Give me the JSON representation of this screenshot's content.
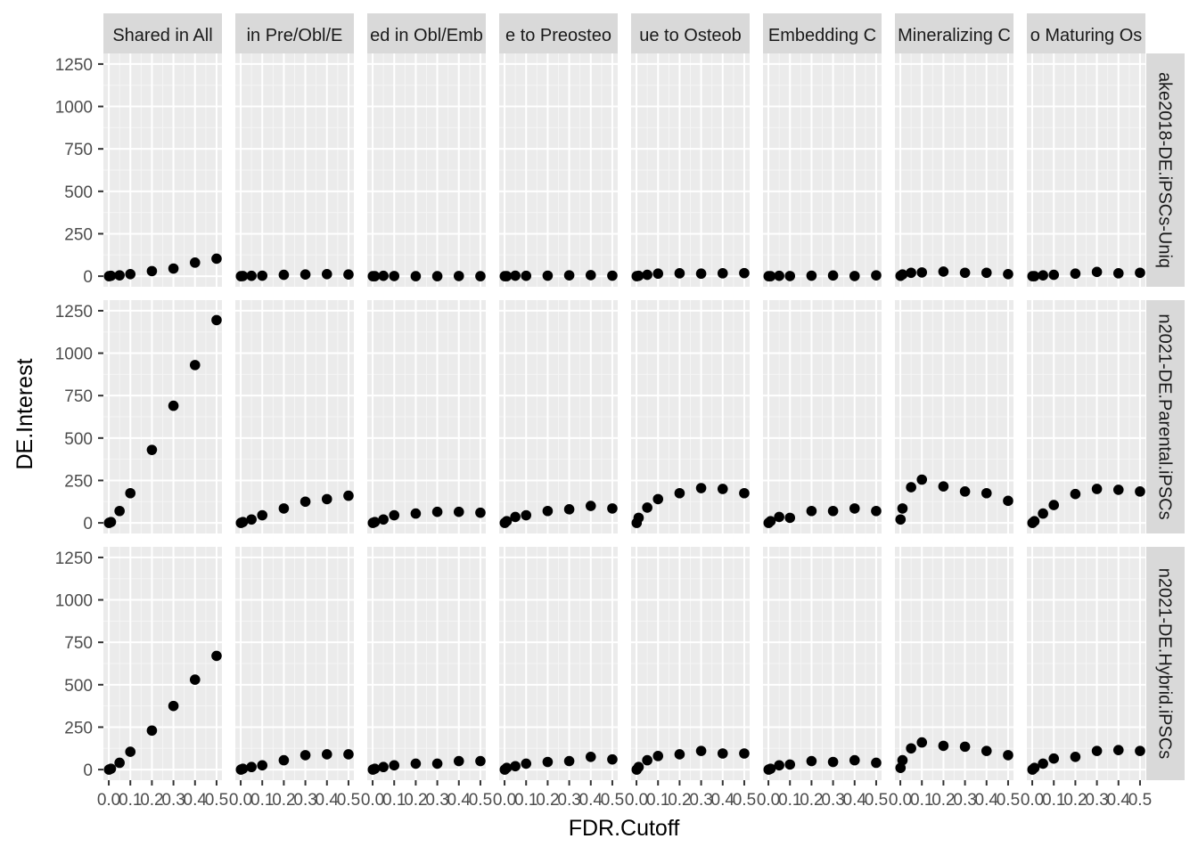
{
  "chart_data": {
    "type": "scatter",
    "facet": "grid",
    "xlabel": "FDR.Cutoff",
    "ylabel": "DE.Interest",
    "xlim": [
      -0.025,
      0.525
    ],
    "ylim": [
      -62.5,
      1312.5
    ],
    "x_ticks": [
      0.0,
      0.1,
      0.2,
      0.3,
      0.4,
      0.5
    ],
    "x_tick_labels": [
      "0.0",
      "0.1",
      "0.2",
      "0.3",
      "0.4",
      "0.5"
    ],
    "y_ticks": [
      0,
      250,
      500,
      750,
      1000,
      1250
    ],
    "y_tick_labels": [
      "0",
      "250",
      "500",
      "750",
      "1000",
      "1250"
    ],
    "grid": true,
    "x": [
      0.001,
      0.01,
      0.05,
      0.1,
      0.2,
      0.3,
      0.4,
      0.5
    ],
    "columns": [
      "Shared in All",
      "in Pre/Obl/E",
      "ed in Obl/Emb",
      "e to Preosteo",
      "ue to Osteob",
      "Embedding C",
      "Mineralizing C",
      "o Maturing Os"
    ],
    "rows": [
      "ake2018-DE.iPSCs-Uniq",
      "n2021-DE.Parental.iPSCs",
      "n2021-DE.Hybrid.iPSCs"
    ],
    "values": [
      [
        [
          0,
          2,
          5,
          12,
          30,
          45,
          80,
          103
        ],
        [
          0,
          1,
          2,
          3,
          8,
          10,
          12,
          10
        ],
        [
          0,
          0,
          2,
          1,
          0,
          0,
          1,
          0
        ],
        [
          0,
          0,
          3,
          2,
          3,
          5,
          6,
          3
        ],
        [
          0,
          2,
          8,
          15,
          17,
          15,
          17,
          18
        ],
        [
          0,
          0,
          2,
          1,
          3,
          4,
          1,
          5
        ],
        [
          2,
          10,
          20,
          22,
          27,
          20,
          20,
          12
        ],
        [
          0,
          0,
          5,
          8,
          15,
          25,
          17,
          20
        ]
      ],
      [
        [
          0,
          5,
          70,
          175,
          430,
          690,
          930,
          1195
        ],
        [
          0,
          5,
          20,
          45,
          85,
          125,
          140,
          160
        ],
        [
          0,
          5,
          20,
          45,
          55,
          65,
          65,
          60
        ],
        [
          0,
          10,
          35,
          45,
          70,
          80,
          100,
          85
        ],
        [
          0,
          30,
          90,
          140,
          175,
          205,
          200,
          175
        ],
        [
          0,
          10,
          35,
          30,
          70,
          70,
          85,
          70
        ],
        [
          20,
          85,
          210,
          255,
          215,
          185,
          175,
          130
        ],
        [
          0,
          10,
          55,
          105,
          170,
          200,
          195,
          185
        ]
      ],
      [
        [
          0,
          5,
          40,
          105,
          230,
          375,
          530,
          670
        ],
        [
          0,
          5,
          15,
          25,
          55,
          85,
          90,
          90
        ],
        [
          0,
          5,
          15,
          25,
          35,
          35,
          50,
          50
        ],
        [
          0,
          10,
          20,
          35,
          45,
          50,
          75,
          60
        ],
        [
          0,
          15,
          55,
          80,
          90,
          110,
          95,
          95
        ],
        [
          0,
          5,
          25,
          30,
          50,
          45,
          55,
          40
        ],
        [
          10,
          55,
          125,
          160,
          140,
          135,
          110,
          85
        ],
        [
          0,
          10,
          35,
          65,
          75,
          110,
          115,
          110
        ]
      ]
    ],
    "colors": {
      "panel_bg": "#ebebeb",
      "strip_bg": "#d9d9d9",
      "grid_major": "#ffffff",
      "grid_minor": "#f5f5f5",
      "point": "#000000",
      "tick_text": "#4d4d4d",
      "tick_mark": "#333333"
    }
  }
}
